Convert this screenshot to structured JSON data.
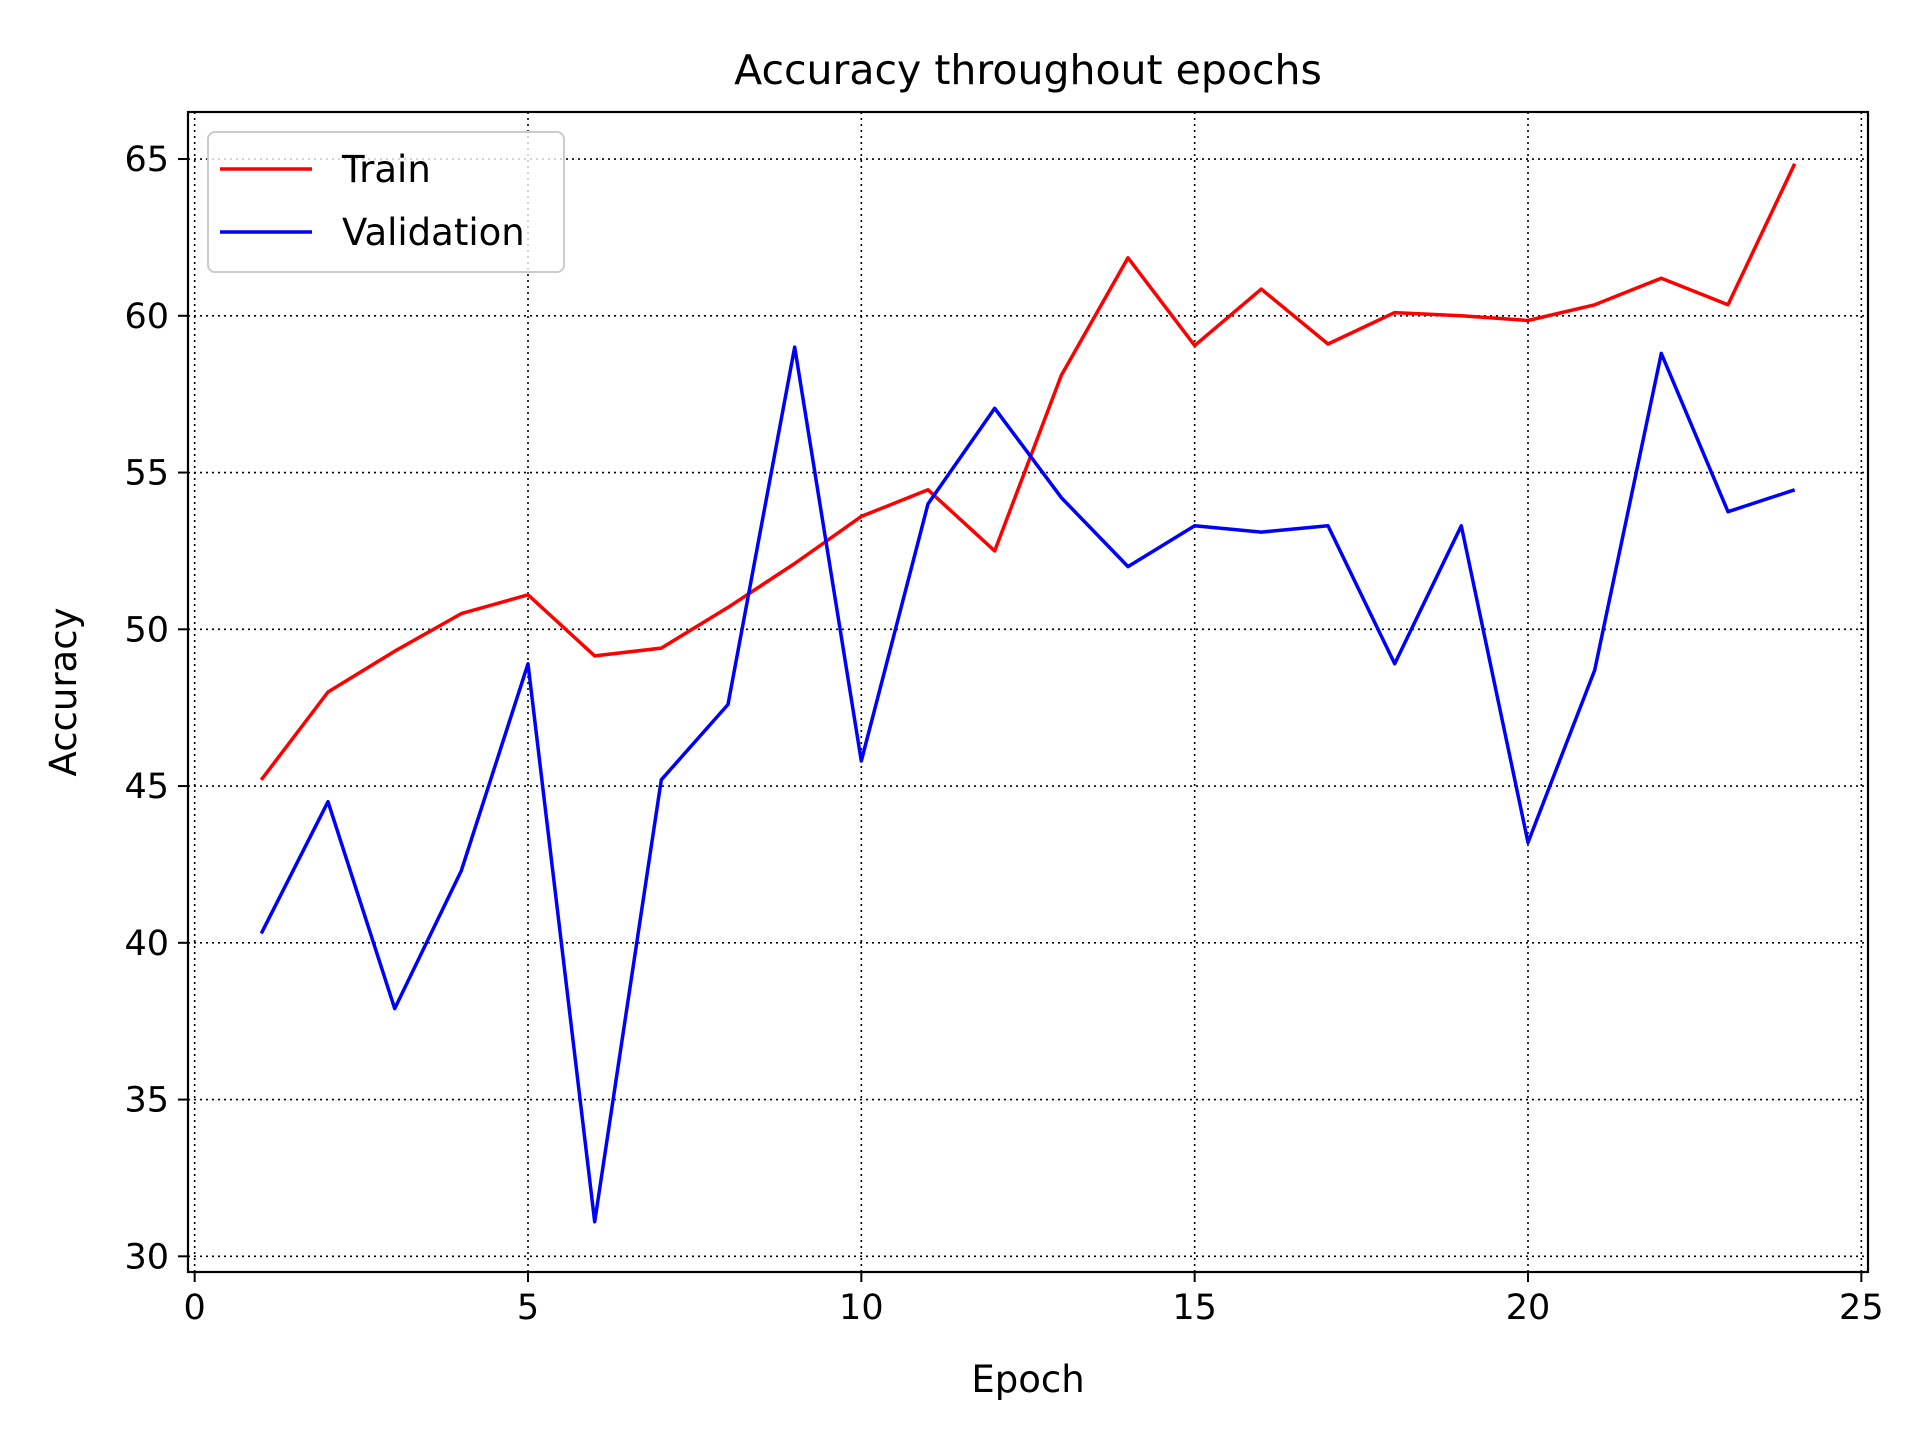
{
  "chart_data": {
    "type": "line",
    "title": "Accuracy throughout epochs",
    "xlabel": "Epoch",
    "ylabel": "Accuracy",
    "xlim": [
      -0.1,
      25.1
    ],
    "ylim": [
      29.5,
      66.5
    ],
    "xticks": [
      0,
      5,
      10,
      15,
      20,
      25
    ],
    "yticks": [
      30,
      35,
      40,
      45,
      50,
      55,
      60,
      65
    ],
    "grid": true,
    "grid_style": "dotted",
    "legend_position": "upper-left",
    "x": [
      1,
      2,
      3,
      4,
      5,
      6,
      7,
      8,
      9,
      10,
      11,
      12,
      13,
      14,
      15,
      16,
      17,
      18,
      19,
      20,
      21,
      22,
      23,
      24
    ],
    "series": [
      {
        "name": "Train",
        "color": "#ff0000",
        "values": [
          45.2,
          48.0,
          49.3,
          50.5,
          51.1,
          49.15,
          49.4,
          50.7,
          52.1,
          53.6,
          54.45,
          52.5,
          58.1,
          61.85,
          59.05,
          60.85,
          59.1,
          60.1,
          60.0,
          59.85,
          60.35,
          61.2,
          60.35,
          64.85
        ]
      },
      {
        "name": "Validation",
        "color": "#0000ff",
        "values": [
          40.3,
          44.5,
          37.9,
          42.3,
          48.9,
          31.1,
          45.2,
          47.6,
          59.0,
          45.8,
          54.0,
          57.05,
          54.2,
          52.0,
          53.3,
          53.1,
          53.3,
          48.9,
          53.3,
          43.2,
          48.7,
          58.8,
          53.75,
          54.45
        ]
      }
    ]
  }
}
